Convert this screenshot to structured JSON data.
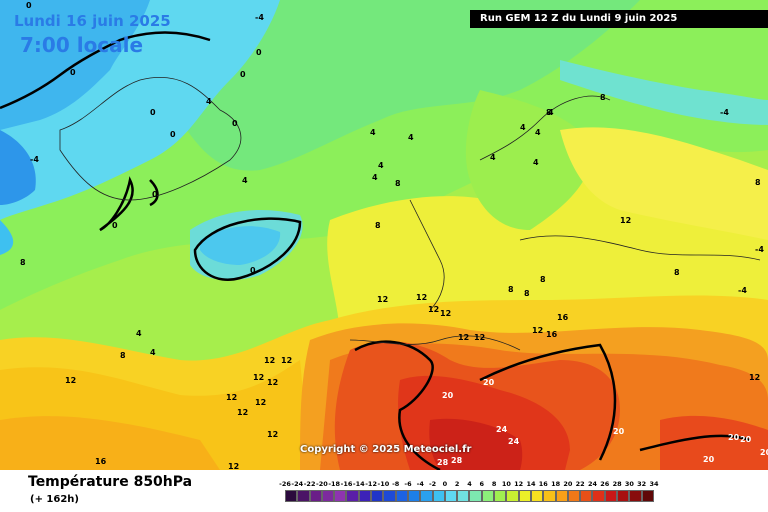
{
  "header": {
    "date": "Lundi 16 juin 2025",
    "time": "7:00 locale",
    "run": "Run GEM 12 Z du Lundi 9 juin 2025"
  },
  "footer": {
    "parameter": "Température 850hPa",
    "lead": "(+ 162h)",
    "copyright": "Copyright © 2025 Meteociel.fr"
  },
  "scale": {
    "ticks": [
      "-26",
      "-24",
      "-22",
      "-20",
      "-18",
      "-16",
      "-14",
      "-12",
      "-10",
      "-8",
      "-6",
      "-4",
      "-2",
      "0",
      "2",
      "4",
      "6",
      "8",
      "10",
      "12",
      "14",
      "16",
      "18",
      "20",
      "22",
      "24",
      "26",
      "28",
      "30",
      "32",
      "34"
    ],
    "colors": [
      "#2b0a3d",
      "#4b1466",
      "#6a1e88",
      "#7d2a9e",
      "#8e34b0",
      "#5a1fa8",
      "#3c22b8",
      "#2035c8",
      "#1e4ad6",
      "#1c62e2",
      "#1d7fe8",
      "#2aa0ee",
      "#3ec0f0",
      "#5fd8f2",
      "#70e0e0",
      "#7de8b0",
      "#8cf07a",
      "#a0f050",
      "#c8f032",
      "#ecf028",
      "#f8e020",
      "#f8c018",
      "#f8a018",
      "#f07818",
      "#e85018",
      "#e03018",
      "#c81818",
      "#a81010",
      "#880c0c",
      "#600808"
    ]
  },
  "isolines": [
    "-4",
    "-4",
    "-4",
    "-4",
    "-4",
    "0",
    "0",
    "0",
    "0",
    "0",
    "0",
    "0",
    "0",
    "0",
    "0",
    "4",
    "4",
    "4",
    "4",
    "4",
    "4",
    "4",
    "4",
    "4",
    "4",
    "4",
    "4",
    "4",
    "8",
    "8",
    "8",
    "8",
    "8",
    "8",
    "8",
    "8",
    "8",
    "8",
    "8",
    "12",
    "12",
    "12",
    "12",
    "12",
    "12",
    "12",
    "12",
    "12",
    "12",
    "12",
    "12",
    "12",
    "12",
    "12",
    "12",
    "12",
    "12",
    "12",
    "16",
    "16",
    "16",
    "20",
    "20",
    "20",
    "20",
    "20",
    "20",
    "20",
    "24",
    "24",
    "28",
    "28"
  ]
}
